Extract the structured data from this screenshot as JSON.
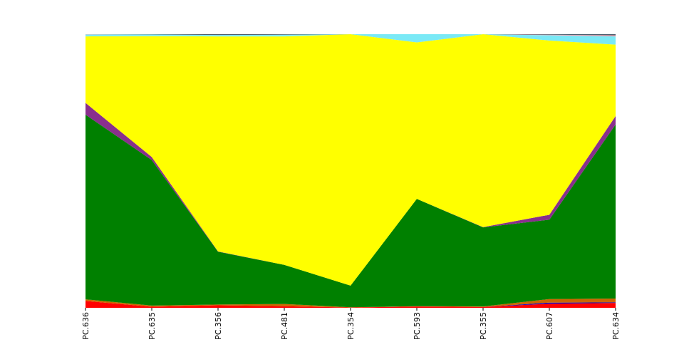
{
  "chart_data": {
    "type": "area",
    "stacked": true,
    "normalized": true,
    "categories": [
      "PC.636",
      "PC.635",
      "PC.356",
      "PC.481",
      "PC.354",
      "PC.593",
      "PC.355",
      "PC.607",
      "PC.634"
    ],
    "ylim": [
      0,
      1
    ],
    "grid": false,
    "legend": "none",
    "title": "",
    "xlabel": "",
    "ylabel": "",
    "series": [
      {
        "color": "#ff0000",
        "values": [
          0.025,
          0.004,
          0.009,
          0.006,
          0.001,
          0.005,
          0.003,
          0.015,
          0.018
        ]
      },
      {
        "color": "#0000cc",
        "values": [
          0.0,
          0.0,
          0.0,
          0.0,
          0.0,
          0.0,
          0.0,
          0.004,
          0.002
        ]
      },
      {
        "color": "#cc6600",
        "values": [
          0.006,
          0.004,
          0.003,
          0.008,
          0.001,
          0.001,
          0.002,
          0.013,
          0.014
        ]
      },
      {
        "color": "#008000",
        "values": [
          0.675,
          0.532,
          0.193,
          0.143,
          0.079,
          0.392,
          0.289,
          0.29,
          0.636
        ]
      },
      {
        "color": "#892f8d",
        "values": [
          0.043,
          0.011,
          0.001,
          0.0,
          0.0,
          0.0,
          0.001,
          0.018,
          0.031
        ]
      },
      {
        "color": "#ffff00",
        "values": [
          0.243,
          0.442,
          0.786,
          0.835,
          0.919,
          0.572,
          0.705,
          0.637,
          0.261
        ]
      },
      {
        "color": "#7ae9f6",
        "values": [
          0.007,
          0.006,
          0.005,
          0.006,
          0.0,
          0.03,
          0.0,
          0.019,
          0.03
        ]
      },
      {
        "color": "#e8a0b0",
        "values": [
          0.001,
          0.0,
          0.0,
          0.0,
          0.0,
          0.0,
          0.0,
          0.002,
          0.004
        ]
      },
      {
        "color": "#4a5a6a",
        "values": [
          0.0,
          0.001,
          0.003,
          0.002,
          0.0,
          0.0,
          0.0,
          0.002,
          0.004
        ]
      }
    ]
  }
}
